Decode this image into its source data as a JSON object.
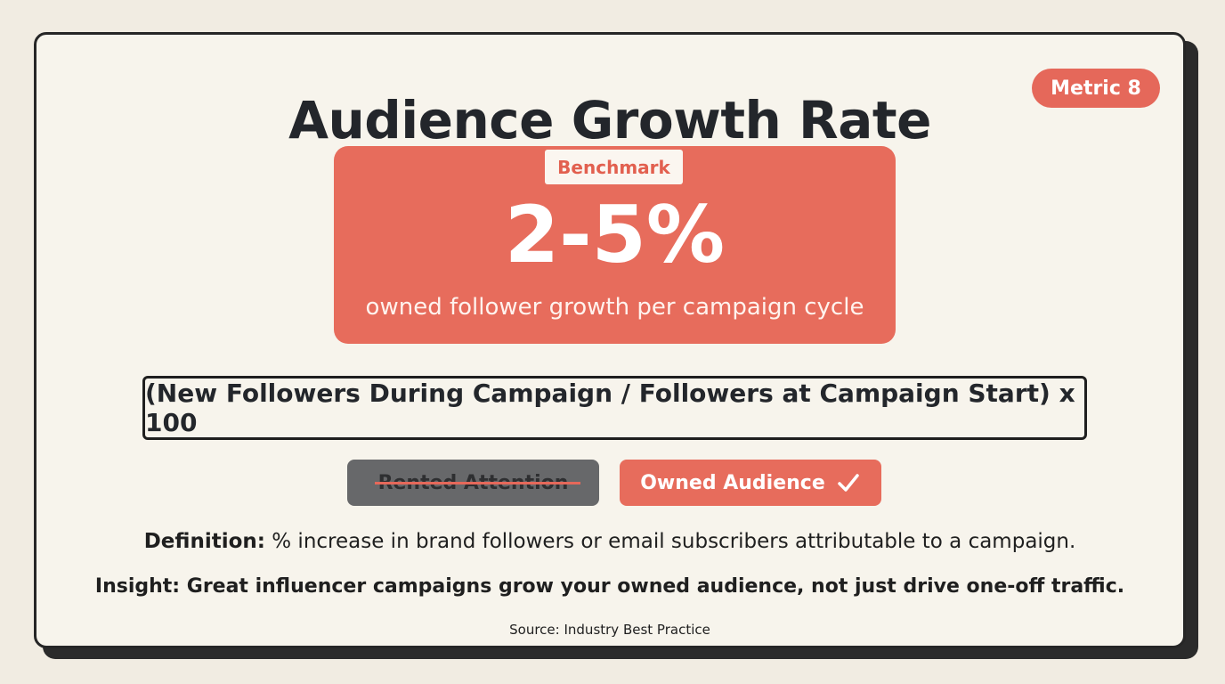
{
  "header": {
    "title": "Audience Growth Rate",
    "metric_badge": "Metric 8"
  },
  "benchmark": {
    "tag": "Benchmark",
    "value": "2-5%",
    "caption": "owned follower growth per campaign cycle"
  },
  "formula": {
    "text": "(New Followers During Campaign / Followers at Campaign Start) x 100"
  },
  "comparison": {
    "rented_label": "Rented Attention",
    "owned_label": "Owned Audience",
    "owned_icon": "check-icon"
  },
  "definition": {
    "label": "Definition:",
    "text": "% increase in brand followers or email subscribers attributable to a campaign."
  },
  "insight": {
    "text": "Insight: Great influencer campaigns grow your owned audience, not just drive one-off traffic."
  },
  "source": {
    "text": "Source: Industry Best Practice"
  },
  "colors": {
    "accent": "#e76c5c",
    "background": "#f1ece2",
    "card": "#f7f4ec",
    "dark": "#23262b",
    "muted_pill": "#67686a"
  }
}
